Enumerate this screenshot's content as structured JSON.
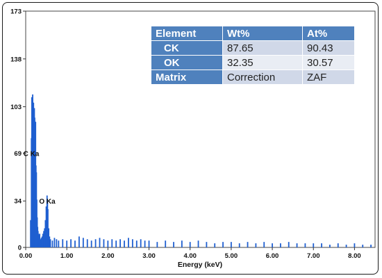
{
  "chart_data": {
    "type": "bar",
    "title": "",
    "xlabel": "Energy (keV)",
    "ylabel": "",
    "xlim": [
      0,
      8.5
    ],
    "ylim": [
      0,
      173
    ],
    "x_ticks": [
      "0.00",
      "1.00",
      "2.00",
      "3.00",
      "4.00",
      "5.00",
      "6.00",
      "7.00",
      "8.00"
    ],
    "y_ticks": [
      "0",
      "34",
      "69",
      "103",
      "138",
      "173"
    ],
    "bar_color": "#1f5fd0",
    "peaks": [
      {
        "label": "C Ka",
        "energy": 0.28
      },
      {
        "label": "O Ka",
        "energy": 0.53
      }
    ],
    "x": [
      0.12,
      0.14,
      0.15,
      0.16,
      0.17,
      0.18,
      0.19,
      0.2,
      0.21,
      0.22,
      0.23,
      0.24,
      0.25,
      0.26,
      0.27,
      0.28,
      0.29,
      0.3,
      0.31,
      0.32,
      0.33,
      0.34,
      0.36,
      0.38,
      0.4,
      0.42,
      0.44,
      0.46,
      0.48,
      0.5,
      0.52,
      0.53,
      0.54,
      0.56,
      0.58,
      0.6,
      0.65,
      0.7,
      0.75,
      0.8,
      0.9,
      1.0,
      1.1,
      1.2,
      1.3,
      1.4,
      1.5,
      1.6,
      1.7,
      1.8,
      1.9,
      2.0,
      2.1,
      2.2,
      2.3,
      2.4,
      2.5,
      2.6,
      2.7,
      2.8,
      2.9,
      3.0,
      3.2,
      3.4,
      3.6,
      3.8,
      4.0,
      4.2,
      4.4,
      4.6,
      4.8,
      5.0,
      5.2,
      5.4,
      5.6,
      5.8,
      6.0,
      6.2,
      6.4,
      6.6,
      6.8,
      7.0,
      7.2,
      7.4,
      7.6,
      7.8,
      8.0,
      8.2,
      8.4
    ],
    "y": [
      20,
      80,
      110,
      104,
      112,
      98,
      106,
      100,
      102,
      95,
      80,
      92,
      60,
      55,
      35,
      22,
      15,
      12,
      10,
      9,
      8,
      10,
      6,
      7,
      8,
      10,
      12,
      14,
      20,
      30,
      38,
      35,
      28,
      14,
      8,
      6,
      5,
      7,
      6,
      5,
      6,
      5,
      6,
      5,
      8,
      7,
      6,
      5,
      6,
      7,
      6,
      5,
      6,
      5,
      6,
      5,
      7,
      6,
      5,
      6,
      5,
      5,
      4,
      5,
      4,
      5,
      4,
      5,
      4,
      3,
      4,
      4,
      3,
      4,
      3,
      4,
      3,
      3,
      4,
      3,
      3,
      3,
      3,
      2,
      3,
      2,
      3,
      2,
      2
    ]
  },
  "table": {
    "headers": [
      "Element",
      "Wt%",
      "At%"
    ],
    "rows": [
      [
        "CK",
        "87.65",
        "90.43"
      ],
      [
        "OK",
        "32.35",
        "30.57"
      ],
      [
        "Matrix",
        "Correction",
        "ZAF"
      ]
    ]
  }
}
